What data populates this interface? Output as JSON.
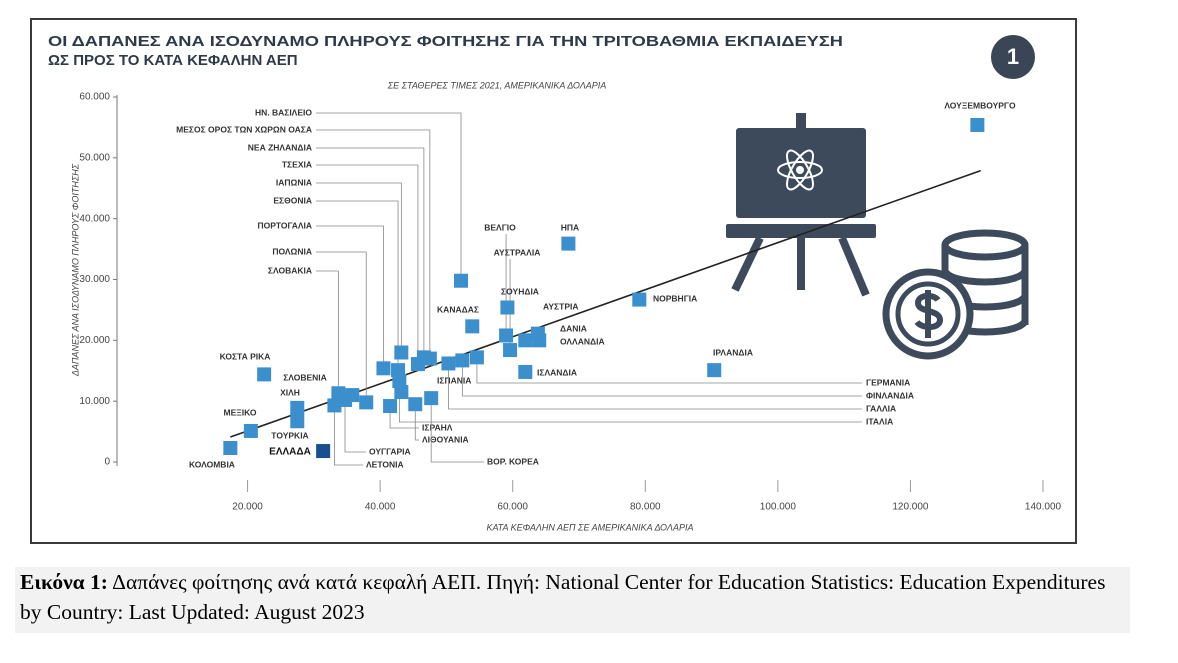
{
  "chart_data": {
    "type": "scatter",
    "title_lines": [
      "ΟΙ ΔΑΠΑΝΕΣ ΑΝΑ ΙΣΟΔΥΝΑΜΟ ΠΛΗΡΟΥΣ ΦΟΙΤΗΣΗΣ ΓΙΑ ΤΗΝ ΤΡΙΤΟΒΑΘΜΙΑ ΕΚΠΑΙΔΕΥΣΗ",
      "ΩΣ ΠΡΟΣ ΤΟ ΚΑΤΑ ΚΕΦΑΛΗΝ ΑΕΠ"
    ],
    "badge": "1",
    "subtitle": "ΣΕ ΣΤΑΘΕΡΕΣ ΤΙΜΕΣ 2021, ΑΜΕΡΙΚΑΝΙΚΑ ΔΟΛΑΡΙΑ",
    "x_label": "ΚΑΤΑ ΚΕΦΑΛΗΝ ΑΕΠ ΣΕ ΑΜΕΡΙΚΑΝΙΚΑ ΔΟΛΑΡΙΑ",
    "y_label": "ΔΑΠΑΝΕΣ ΑΝΑ ΙΣΟΔΥΝΑΜΟ ΠΛΗΡΟΥΣ ΦΟΙΤΗΣΗΣ",
    "xlim": [
      0,
      140000
    ],
    "ylim": [
      0,
      60000
    ],
    "xticks": [
      {
        "value": 20000,
        "label": "20.000"
      },
      {
        "value": 40000,
        "label": "40.000"
      },
      {
        "value": 60000,
        "label": "60.000"
      },
      {
        "value": 80000,
        "label": "80.000"
      },
      {
        "value": 100000,
        "label": "100.000"
      },
      {
        "value": 120000,
        "label": "120.000"
      },
      {
        "value": 140000,
        "label": "140.000"
      }
    ],
    "yticks": [
      0,
      {
        "value": 10000,
        "label": "10.000"
      },
      {
        "value": 20000,
        "label": "20.000"
      },
      {
        "value": 30000,
        "label": "30.000"
      },
      {
        "value": 40000,
        "label": "40.000"
      },
      {
        "value": 50000,
        "label": "50.000"
      },
      {
        "value": 60000,
        "label": "60.000"
      }
    ],
    "point_labels": [
      "ΛΟΥΞΕΜΒΟΥΡΓΟ",
      "ΗΠΑ",
      "ΝΟΡΒΗΓΙΑ",
      "ΙΡΛΑΝΔΙΑ",
      "ΚΟΣΤΑ ΡΙΚΑ",
      "ΜΕΞΙΚΟ",
      "ΚΟΛΟΜΒΙΑ",
      "ΧΙΛΗ",
      "ΤΟΥΡΚΙΑ",
      "ΕΛΛΑΔΑ",
      "ΣΛΟΒΕΝΙΑ",
      "ΣΛΟΒΑΚΙΑ",
      "ΠΟΛΩΝΙΑ",
      "ΠΟΡΤΟΓΑΛΙΑ",
      "ΕΣΘΟΝΙΑ",
      "ΙΑΠΩΝΙΑ",
      "ΤΣΕΧΙΑ",
      "ΝΕΑ ΖΗΛΑΝΔΙΑ",
      "ΜΕΣΟΣ ΟΡΟΣ ΤΩΝ ΧΩΡΩΝ ΟΑΣΑ",
      "ΗΝ. ΒΑΣΙΛΕΙΟ",
      "ΟΥΓΓΑΡΙΑ",
      "ΛΕΤΟΝΙΑ",
      "ΙΣΠΑΝΙΑ",
      "ΙΣΡΑΗΛ",
      "ΛΙΘΟΥΑΝΙΑ",
      "ΒΟΡ. ΚΟΡΕΑ",
      "ΙΤΑΛΙΑ",
      "ΓΑΛΛΙΑ",
      "ΦΙΝΛΑΝΔΙΑ",
      "ΓΕΡΜΑΝΙΑ",
      "ΚΑΝΑΔΑΣ",
      "ΒΕΛΓΙΟ",
      "ΑΥΣΤΡΑΛΙΑ",
      "ΣΟΥΗΔΙΑ",
      "ΑΥΣΤΡΙΑ",
      "ΔΑΝΙΑ",
      "ΟΛΛΑΝΔΙΑ",
      "ΙΣΛΑΝΔΙΑ"
    ],
    "x": [
      130100,
      68400,
      79100,
      90400,
      22500,
      20500,
      17400,
      27500,
      27500,
      31400,
      35800,
      33700,
      37900,
      40500,
      42700,
      43200,
      45700,
      46600,
      47500,
      52200,
      34700,
      33100,
      43200,
      41500,
      45300,
      47700,
      42900,
      50300,
      52400,
      54600,
      53900,
      59000,
      59600,
      59200,
      61900,
      63800,
      64000,
      61900
    ],
    "values": [
      55400,
      35900,
      26700,
      15100,
      14400,
      5100,
      2300,
      8900,
      6700,
      1800,
      11000,
      11300,
      9800,
      15400,
      15100,
      18000,
      16100,
      17200,
      17000,
      29800,
      10200,
      9300,
      11500,
      9200,
      9500,
      10500,
      13300,
      16200,
      16700,
      17200,
      22300,
      20800,
      18400,
      25400,
      20000,
      21100,
      20000,
      14800
    ],
    "colors": [
      "#3c8fcd",
      "#3c8fcd",
      "#3c8fcd",
      "#3c8fcd",
      "#3c8fcd",
      "#3c8fcd",
      "#3c8fcd",
      "#3c8fcd",
      "#3c8fcd",
      "#1b4e8e",
      "#3c8fcd",
      "#3c8fcd",
      "#3c8fcd",
      "#3c8fcd",
      "#3c8fcd",
      "#3c8fcd",
      "#3c8fcd",
      "#3c8fcd",
      "#3c8fcd",
      "#3c8fcd",
      "#3c8fcd",
      "#3c8fcd",
      "#3c8fcd",
      "#3c8fcd",
      "#3c8fcd",
      "#3c8fcd",
      "#3c8fcd",
      "#3c8fcd",
      "#3c8fcd",
      "#3c8fcd",
      "#3c8fcd",
      "#3c8fcd",
      "#3c8fcd",
      "#3c8fcd",
      "#3c8fcd",
      "#3c8fcd",
      "#3c8fcd",
      "#3c8fcd"
    ],
    "trendline": {
      "x": [
        17400,
        130600
      ],
      "y": [
        4100,
        47900
      ]
    }
  },
  "caption": {
    "label": "Εικόνα 1:",
    "text": "Δαπάνες φοίτησης ανά κατά κεφαλή ΑΕΠ. Πηγή: National Center for Education Statistics: Education Expenditures by Country: Last Updated: August 2023"
  }
}
